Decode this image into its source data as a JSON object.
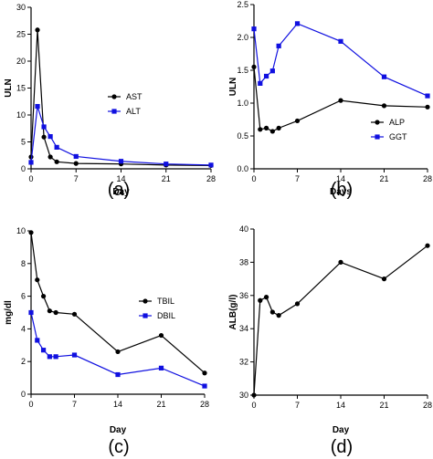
{
  "colors": {
    "series_black": "#000000",
    "series_blue": "#1010e0"
  },
  "chart_data": [
    {
      "panel": "(a)",
      "type": "line",
      "xlabel": "Day",
      "ylabel": "ULN",
      "xlim": [
        0,
        28
      ],
      "ylim": [
        0,
        30
      ],
      "xticks": [
        0,
        7,
        14,
        21,
        28
      ],
      "yticks": [
        0,
        5,
        10,
        15,
        20,
        25,
        30
      ],
      "grid": false,
      "legend_position": "center-right",
      "series": [
        {
          "name": "AST",
          "color": "#000000",
          "marker": "circle",
          "x": [
            0,
            1,
            2,
            3,
            4,
            7,
            14,
            21,
            28
          ],
          "y": [
            2.2,
            25.8,
            5.9,
            2.2,
            1.3,
            1.0,
            0.9,
            0.7,
            0.6
          ]
        },
        {
          "name": "ALT",
          "color": "#1010e0",
          "marker": "square",
          "x": [
            0,
            1,
            2,
            3,
            4,
            7,
            14,
            21,
            28
          ],
          "y": [
            1.2,
            11.6,
            7.8,
            6.0,
            4.0,
            2.3,
            1.4,
            0.9,
            0.7
          ]
        }
      ]
    },
    {
      "panel": "(b)",
      "type": "line",
      "xlabel": "Days",
      "ylabel": "ULN",
      "xlim": [
        0,
        28
      ],
      "ylim": [
        0,
        2.5
      ],
      "xticks": [
        0,
        7,
        14,
        21,
        28
      ],
      "xticklabels": [
        "0",
        "7",
        "14",
        "21",
        "28"
      ],
      "yticks": [
        0.0,
        0.5,
        1.0,
        1.5,
        2.0,
        2.5
      ],
      "yticklabels": [
        "0.0",
        "0.5",
        "1.0",
        "1.5",
        "2.0",
        "2.5"
      ],
      "grid": false,
      "legend_position": "bottom-right",
      "series": [
        {
          "name": "ALP",
          "color": "#000000",
          "marker": "circle",
          "x": [
            0,
            1,
            2,
            3,
            4,
            7,
            14,
            21,
            28
          ],
          "y": [
            1.55,
            0.6,
            0.62,
            0.57,
            0.62,
            0.73,
            1.04,
            0.96,
            0.94
          ]
        },
        {
          "name": "GGT",
          "color": "#1010e0",
          "marker": "square",
          "x": [
            0,
            1,
            2,
            3,
            4,
            7,
            14,
            21,
            28
          ],
          "y": [
            2.13,
            1.3,
            1.41,
            1.49,
            1.87,
            2.21,
            1.94,
            1.4,
            1.11
          ]
        }
      ]
    },
    {
      "panel": "(c)",
      "type": "line",
      "xlabel": "Day",
      "ylabel": "mg/dl",
      "xlim": [
        0,
        28
      ],
      "ylim": [
        0,
        10
      ],
      "xticks": [
        0,
        7,
        14,
        21,
        28
      ],
      "yticks": [
        0,
        2,
        4,
        6,
        8,
        10
      ],
      "grid": false,
      "legend_position": "center-right",
      "series": [
        {
          "name": "TBIL",
          "color": "#000000",
          "marker": "circle",
          "x": [
            0,
            1,
            2,
            3,
            4,
            7,
            14,
            21,
            28
          ],
          "y": [
            9.9,
            7.0,
            6.0,
            5.1,
            5.0,
            4.9,
            2.6,
            3.6,
            1.3
          ]
        },
        {
          "name": "DBIL",
          "color": "#1010e0",
          "marker": "square",
          "x": [
            0,
            1,
            2,
            3,
            4,
            7,
            14,
            21,
            28
          ],
          "y": [
            5.0,
            3.3,
            2.7,
            2.3,
            2.3,
            2.4,
            1.2,
            1.6,
            0.5
          ]
        }
      ]
    },
    {
      "panel": "(d)",
      "type": "line",
      "xlabel": "Day",
      "ylabel": "ALB(g/l)",
      "xlim": [
        0,
        28
      ],
      "ylim": [
        30,
        40
      ],
      "xticks": [
        0,
        7,
        14,
        21,
        28
      ],
      "xticklabels": [
        "0",
        "7",
        "14",
        "21",
        "28"
      ],
      "yticks": [
        30,
        32,
        34,
        36,
        38,
        40
      ],
      "grid": false,
      "series": [
        {
          "color": "#000000",
          "marker": "circle",
          "x": [
            0,
            1,
            2,
            3,
            4,
            7,
            14,
            21,
            28
          ],
          "y": [
            30.0,
            35.7,
            35.9,
            35.0,
            34.8,
            35.5,
            38.0,
            37.0,
            39.0
          ]
        }
      ]
    }
  ]
}
